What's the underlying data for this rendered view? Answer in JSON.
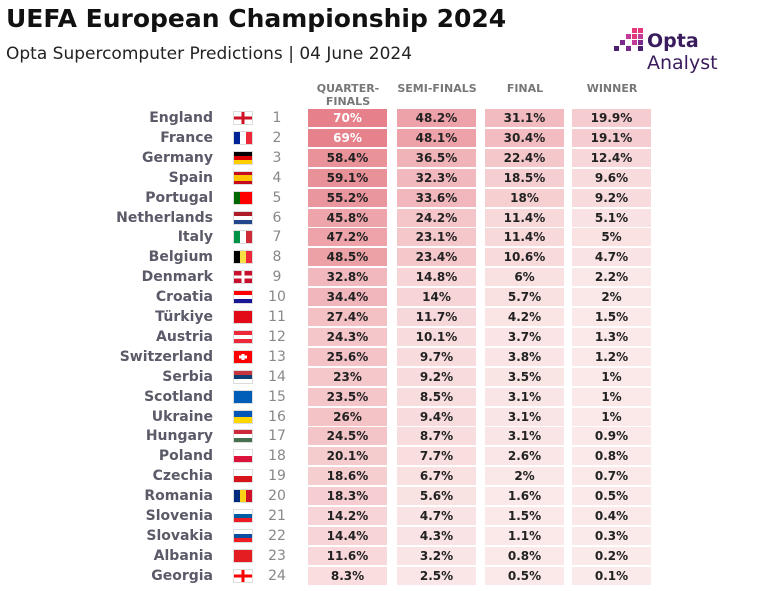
{
  "header": {
    "title": "UEFA European Championship 2024",
    "subtitle": "Opta Supercomputer Predictions | 04 June 2024"
  },
  "logo": {
    "brand": "Opta",
    "product": "Analyst"
  },
  "table": {
    "columns": [
      "QUARTER-FINALS",
      "SEMI-FINALS",
      "FINAL",
      "WINNER"
    ],
    "rows": [
      [
        "England",
        "1",
        "70%",
        "48.2%",
        "31.1%",
        "19.9%"
      ],
      [
        "France",
        "2",
        "69%",
        "48.1%",
        "30.4%",
        "19.1%"
      ],
      [
        "Germany",
        "3",
        "58.4%",
        "36.5%",
        "22.4%",
        "12.4%"
      ],
      [
        "Spain",
        "4",
        "59.1%",
        "32.3%",
        "18.5%",
        "9.6%"
      ],
      [
        "Portugal",
        "5",
        "55.2%",
        "33.6%",
        "18%",
        "9.2%"
      ],
      [
        "Netherlands",
        "6",
        "45.8%",
        "24.2%",
        "11.4%",
        "5.1%"
      ],
      [
        "Italy",
        "7",
        "47.2%",
        "23.1%",
        "11.4%",
        "5%"
      ],
      [
        "Belgium",
        "8",
        "48.5%",
        "23.4%",
        "10.6%",
        "4.7%"
      ],
      [
        "Denmark",
        "9",
        "32.8%",
        "14.8%",
        "6%",
        "2.2%"
      ],
      [
        "Croatia",
        "10",
        "34.4%",
        "14%",
        "5.7%",
        "2%"
      ],
      [
        "Türkiye",
        "11",
        "27.4%",
        "11.7%",
        "4.2%",
        "1.5%"
      ],
      [
        "Austria",
        "12",
        "24.3%",
        "10.1%",
        "3.7%",
        "1.3%"
      ],
      [
        "Switzerland",
        "13",
        "25.6%",
        "9.7%",
        "3.8%",
        "1.2%"
      ],
      [
        "Serbia",
        "14",
        "23%",
        "9.2%",
        "3.5%",
        "1%"
      ],
      [
        "Scotland",
        "15",
        "23.5%",
        "8.5%",
        "3.1%",
        "1%"
      ],
      [
        "Ukraine",
        "16",
        "26%",
        "9.4%",
        "3.1%",
        "1%"
      ],
      [
        "Hungary",
        "17",
        "24.5%",
        "8.7%",
        "3.1%",
        "0.9%"
      ],
      [
        "Poland",
        "18",
        "20.1%",
        "7.7%",
        "2.6%",
        "0.8%"
      ],
      [
        "Czechia",
        "19",
        "18.6%",
        "6.7%",
        "2%",
        "0.7%"
      ],
      [
        "Romania",
        "20",
        "18.3%",
        "5.6%",
        "1.6%",
        "0.5%"
      ],
      [
        "Slovenia",
        "21",
        "14.2%",
        "4.7%",
        "1.5%",
        "0.4%"
      ],
      [
        "Slovakia",
        "22",
        "14.4%",
        "4.3%",
        "1.1%",
        "0.3%"
      ],
      [
        "Albania",
        "23",
        "11.6%",
        "3.2%",
        "0.8%",
        "0.2%"
      ],
      [
        "Georgia",
        "24",
        "8.3%",
        "2.5%",
        "0.5%",
        "0.1%"
      ]
    ]
  }
}
